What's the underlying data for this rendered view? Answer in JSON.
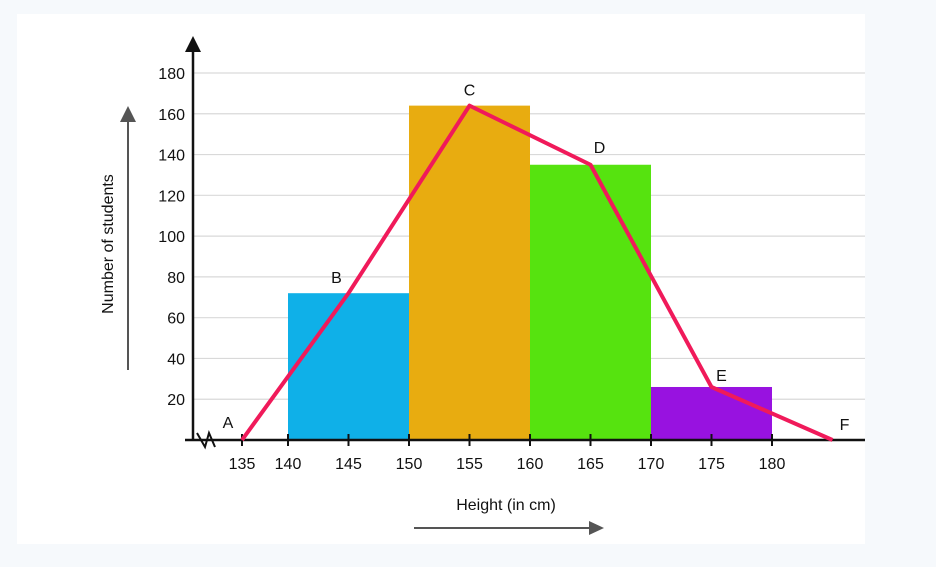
{
  "chart_data": {
    "type": "bar",
    "xlabel": "Height (in cm)",
    "ylabel": "Number of students",
    "ylim": [
      0,
      180
    ],
    "y_ticks": [
      20,
      40,
      60,
      80,
      100,
      120,
      140,
      160,
      180
    ],
    "x_ticks": [
      135,
      140,
      145,
      150,
      155,
      160,
      165,
      170,
      175,
      180
    ],
    "axis_break": true,
    "grid": "horizontal",
    "bins": [
      {
        "from": 140,
        "to": 150,
        "value": 72,
        "color": "#0fb0e8"
      },
      {
        "from": 150,
        "to": 160,
        "value": 164,
        "color": "#e8ac10"
      },
      {
        "from": 160,
        "to": 170,
        "value": 135,
        "color": "#56e30f"
      },
      {
        "from": 170,
        "to": 180,
        "value": 26,
        "color": "#9812e0"
      }
    ],
    "polygon": {
      "color": "#f01a5a",
      "points": [
        {
          "label": "A",
          "x": 135,
          "y": 0
        },
        {
          "label": "B",
          "x": 145,
          "y": 72
        },
        {
          "label": "C",
          "x": 155,
          "y": 164
        },
        {
          "label": "D",
          "x": 165,
          "y": 135
        },
        {
          "label": "E",
          "x": 175,
          "y": 26
        },
        {
          "label": "F",
          "x": 185,
          "y": 0
        }
      ]
    }
  }
}
